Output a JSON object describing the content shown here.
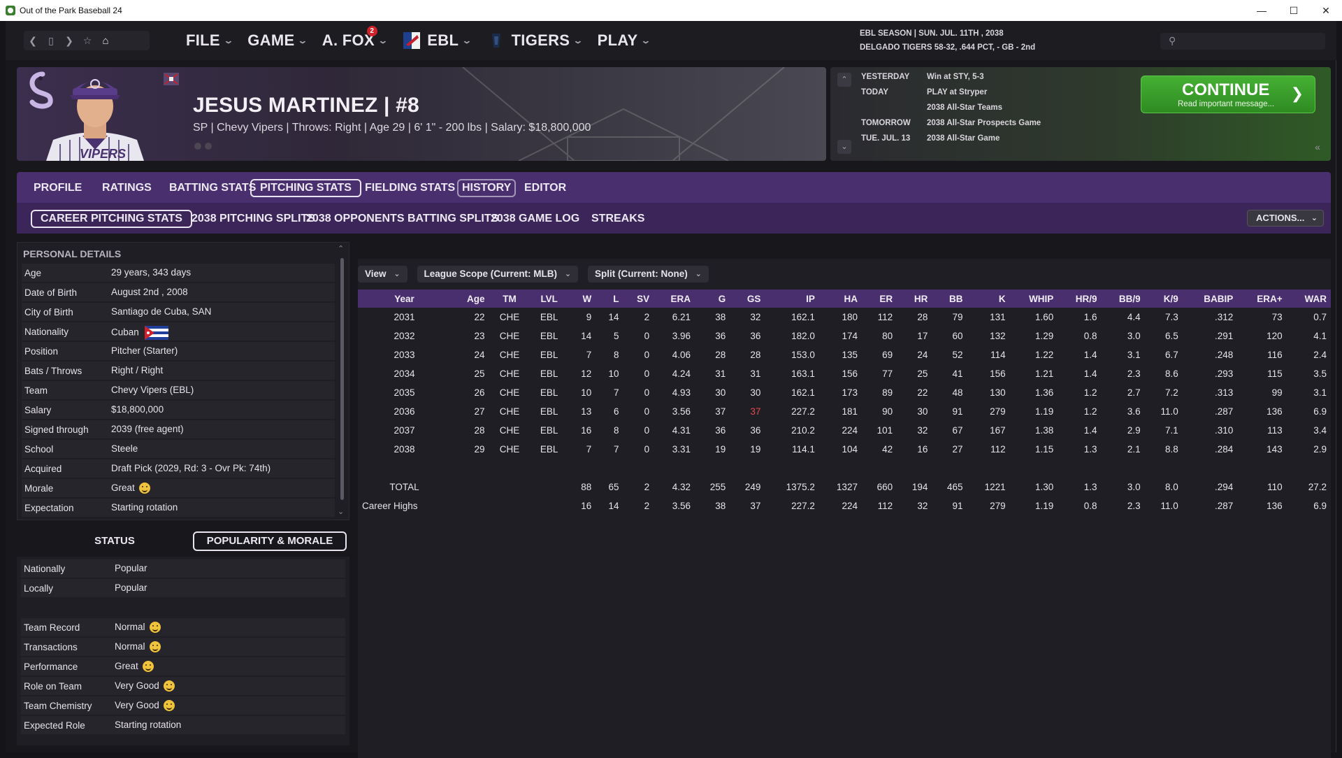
{
  "window": {
    "title": "Out of the Park Baseball 24"
  },
  "nav": {
    "menus": [
      {
        "label": "FILE"
      },
      {
        "label": "GAME"
      },
      {
        "label": "A. FOX",
        "badge": "2"
      },
      {
        "label": "EBL"
      },
      {
        "label": "TIGERS"
      },
      {
        "label": "PLAY"
      }
    ],
    "season_line1": "EBL SEASON  |  SUN. JUL. 11TH , 2038",
    "season_line2": "DELGADO TIGERS  58-32, .644 PCT, - GB - 2nd",
    "search_placeholder": ""
  },
  "player": {
    "name": "JESUS MARTINEZ  |  #8",
    "subtitle": "SP | Chevy Vipers  |  Throws: Right  |  Age 29  |  6' 1\" - 200 lbs  |  Salary: $18,800,000"
  },
  "schedule": {
    "rows": [
      {
        "label": "YESTERDAY",
        "value": "Win at STY, 5-3"
      },
      {
        "label": "TODAY",
        "value": "PLAY at Stryper"
      },
      {
        "label": "",
        "value": "2038 All-Star Teams"
      },
      {
        "label": "TOMORROW",
        "value": "2038 All-Star Prospects Game"
      },
      {
        "label": "TUE. JUL. 13",
        "value": "2038 All-Star Game"
      }
    ],
    "continue_label": "CONTINUE",
    "continue_sub": "Read important message..."
  },
  "tabs": {
    "main": [
      "PROFILE",
      "RATINGS",
      "BATTING STATS",
      "PITCHING STATS",
      "FIELDING STATS",
      "HISTORY",
      "EDITOR"
    ],
    "sub": [
      "CAREER PITCHING STATS",
      "2038 PITCHING SPLITS",
      "2038 OPPONENTS BATTING SPLITS",
      "2038 GAME LOG",
      "STREAKS"
    ],
    "actions_label": "ACTIONS..."
  },
  "personal_details": {
    "title": "PERSONAL DETAILS",
    "rows": [
      {
        "k": "Age",
        "v": "29 years, 343 days"
      },
      {
        "k": "Date of Birth",
        "v": "August 2nd , 2008"
      },
      {
        "k": "City of Birth",
        "v": "Santiago de Cuba, SAN"
      },
      {
        "k": "Nationality",
        "v": "Cuban"
      },
      {
        "k": "Position",
        "v": "Pitcher (Starter)"
      },
      {
        "k": "Bats / Throws",
        "v": "Right / Right"
      },
      {
        "k": "Team",
        "v": "Chevy Vipers (EBL)"
      },
      {
        "k": "Salary",
        "v": "$18,800,000"
      },
      {
        "k": "Signed through",
        "v": "2039 (free agent)"
      },
      {
        "k": "School",
        "v": "Steele"
      },
      {
        "k": "Acquired",
        "v": "Draft Pick (2029, Rd: 3 - Ovr Pk: 74th)"
      },
      {
        "k": "Morale",
        "v": "Great"
      },
      {
        "k": "Expectation",
        "v": "Starting rotation"
      }
    ]
  },
  "status": {
    "tab_status": "STATUS",
    "tab_popularity": "POPULARITY & MORALE",
    "rows": [
      {
        "k": "Nationally",
        "v": "Popular"
      },
      {
        "k": "Locally",
        "v": "Popular"
      },
      {
        "k": "Team Record",
        "v": "Normal"
      },
      {
        "k": "Transactions",
        "v": "Normal"
      },
      {
        "k": "Performance",
        "v": "Great"
      },
      {
        "k": "Role on Team",
        "v": "Very Good"
      },
      {
        "k": "Team Chemistry",
        "v": "Very Good"
      },
      {
        "k": "Expected Role",
        "v": "Starting rotation"
      }
    ]
  },
  "filters": {
    "view": "View",
    "scope": "League Scope (Current: MLB)",
    "split": "Split (Current: None)"
  },
  "stats_table": {
    "columns": [
      "Year",
      "Age",
      "TM",
      "LVL",
      "W",
      "L",
      "SV",
      "ERA",
      "G",
      "GS",
      "IP",
      "HA",
      "ER",
      "HR",
      "BB",
      "K",
      "WHIP",
      "HR/9",
      "BB/9",
      "K/9",
      "BABIP",
      "ERA+",
      "WAR"
    ],
    "rows": [
      [
        "2031",
        "22",
        "CHE",
        "EBL",
        "9",
        "14",
        "2",
        "6.21",
        "38",
        "32",
        "162.1",
        "180",
        "112",
        "28",
        "79",
        "131",
        "1.60",
        "1.6",
        "4.4",
        "7.3",
        ".312",
        "73",
        "0.7"
      ],
      [
        "2032",
        "23",
        "CHE",
        "EBL",
        "14",
        "5",
        "0",
        "3.96",
        "36",
        "36",
        "182.0",
        "174",
        "80",
        "17",
        "60",
        "132",
        "1.29",
        "0.8",
        "3.0",
        "6.5",
        ".291",
        "120",
        "4.1"
      ],
      [
        "2033",
        "24",
        "CHE",
        "EBL",
        "7",
        "8",
        "0",
        "4.06",
        "28",
        "28",
        "153.0",
        "135",
        "69",
        "24",
        "52",
        "114",
        "1.22",
        "1.4",
        "3.1",
        "6.7",
        ".248",
        "116",
        "2.4"
      ],
      [
        "2034",
        "25",
        "CHE",
        "EBL",
        "12",
        "10",
        "0",
        "4.24",
        "31",
        "31",
        "163.1",
        "156",
        "77",
        "25",
        "41",
        "156",
        "1.21",
        "1.4",
        "2.3",
        "8.6",
        ".293",
        "115",
        "3.5"
      ],
      [
        "2035",
        "26",
        "CHE",
        "EBL",
        "10",
        "7",
        "0",
        "4.93",
        "30",
        "30",
        "162.1",
        "173",
        "89",
        "22",
        "48",
        "130",
        "1.36",
        "1.2",
        "2.7",
        "7.2",
        ".313",
        "99",
        "3.1"
      ],
      [
        "2036",
        "27",
        "CHE",
        "EBL",
        "13",
        "6",
        "0",
        "3.56",
        "37",
        "37",
        "227.2",
        "181",
        "90",
        "30",
        "91",
        "279",
        "1.19",
        "1.2",
        "3.6",
        "11.0",
        ".287",
        "136",
        "6.9"
      ],
      [
        "2037",
        "28",
        "CHE",
        "EBL",
        "16",
        "8",
        "0",
        "4.31",
        "36",
        "36",
        "210.2",
        "224",
        "101",
        "32",
        "67",
        "167",
        "1.38",
        "1.4",
        "2.9",
        "7.1",
        ".310",
        "113",
        "3.4"
      ],
      [
        "2038",
        "29",
        "CHE",
        "EBL",
        "7",
        "7",
        "0",
        "3.31",
        "19",
        "19",
        "114.1",
        "104",
        "42",
        "16",
        "27",
        "112",
        "1.15",
        "1.3",
        "2.1",
        "8.8",
        ".284",
        "143",
        "2.9"
      ]
    ],
    "total": [
      "TOTAL",
      "",
      "",
      "",
      "88",
      "65",
      "2",
      "4.32",
      "255",
      "249",
      "1375.2",
      "1327",
      "660",
      "194",
      "465",
      "1221",
      "1.30",
      "1.3",
      "3.0",
      "8.0",
      ".294",
      "110",
      "27.2"
    ],
    "career_highs": [
      "Career Highs",
      "",
      "",
      "",
      "16",
      "14",
      "2",
      "3.56",
      "38",
      "37",
      "227.2",
      "224",
      "112",
      "32",
      "91",
      "279",
      "1.19",
      "0.8",
      "2.3",
      "11.0",
      ".287",
      "136",
      "6.9"
    ],
    "highlight_color": "#e04b4b"
  }
}
